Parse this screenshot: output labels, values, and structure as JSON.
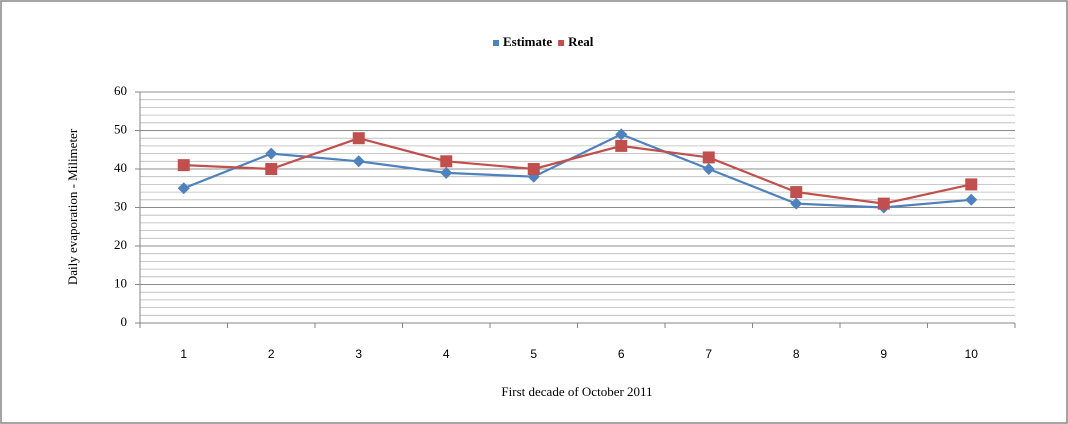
{
  "chart_data": {
    "type": "line",
    "title": null,
    "x_label": "First decade of October 2011",
    "y_label": "Daily evaporation - Milimeter",
    "categories": [
      "1",
      "2",
      "3",
      "4",
      "5",
      "6",
      "7",
      "8",
      "9",
      "10"
    ],
    "series": [
      {
        "name": "Estimate",
        "color": "#4f81bd",
        "marker": "diamond",
        "values": [
          35,
          44,
          42,
          39,
          38,
          49,
          40,
          31,
          30,
          32
        ]
      },
      {
        "name": "Real",
        "color": "#c0504d",
        "marker": "square",
        "values": [
          41,
          40,
          48,
          42,
          40,
          46,
          43,
          34,
          31,
          36
        ]
      }
    ],
    "ylim": [
      0,
      60
    ],
    "yticks": [
      0,
      10,
      20,
      30,
      40,
      50,
      60
    ],
    "yminorticks": [
      2,
      4,
      6,
      8,
      12,
      14,
      16,
      18,
      22,
      24,
      26,
      28,
      32,
      34,
      36,
      38,
      42,
      44,
      46,
      48,
      52,
      54,
      56,
      58
    ],
    "grid": true,
    "legend": "top"
  }
}
